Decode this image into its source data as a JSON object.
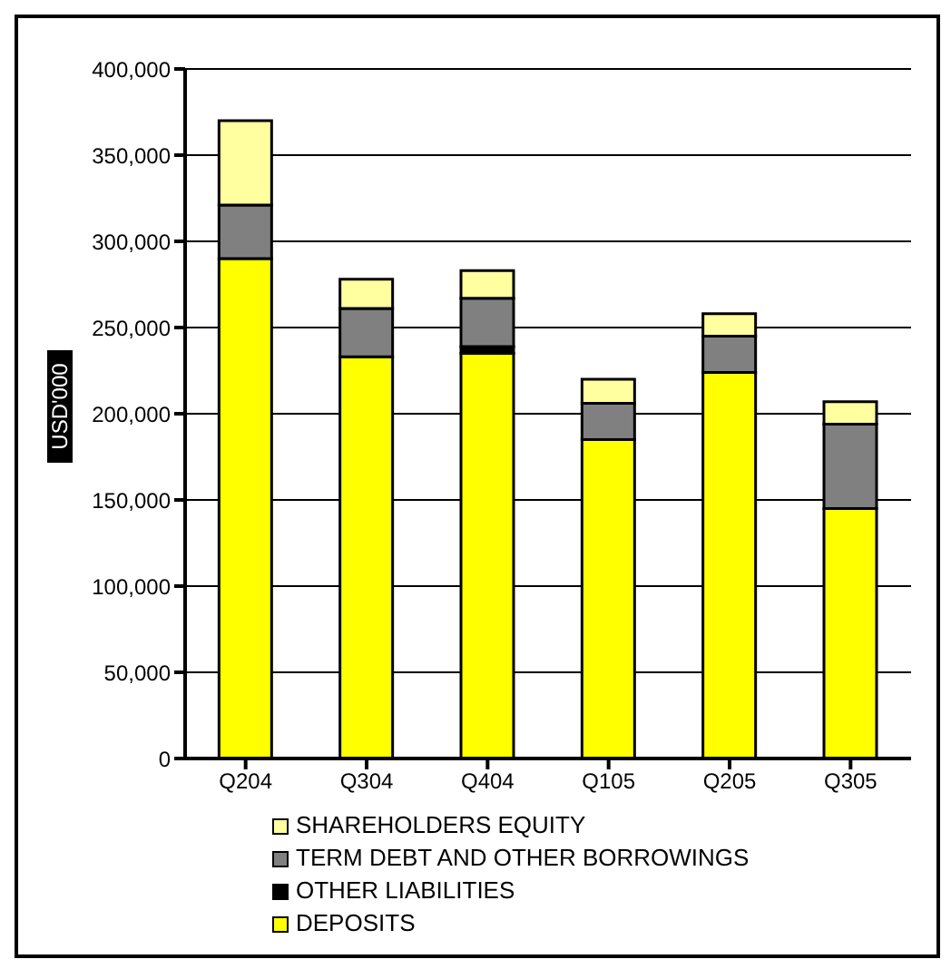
{
  "chart_data": {
    "type": "bar",
    "stacked": true,
    "ylabel": "USD'000",
    "categories": [
      "Q204",
      "Q304",
      "Q404",
      "Q105",
      "Q205",
      "Q305"
    ],
    "series": [
      {
        "name": "DEPOSITS",
        "color": "#ffff00",
        "values": [
          290000,
          233000,
          235000,
          185000,
          224000,
          145000
        ]
      },
      {
        "name": "OTHER LIABILITIES",
        "color": "#000000",
        "values": [
          null,
          null,
          4000,
          null,
          null,
          null
        ]
      },
      {
        "name": "TERM DEBT AND OTHER BORROWINGS",
        "color": "#808080",
        "values": [
          31000,
          28000,
          28000,
          21000,
          21000,
          49000
        ]
      },
      {
        "name": "SHAREHOLDERS EQUITY",
        "color": "#ffffa0",
        "values": [
          49000,
          17000,
          16000,
          14000,
          13000,
          13000
        ]
      }
    ],
    "ylim": [
      0,
      400000
    ],
    "yticks": [
      0,
      {
        "value": 50000,
        "label": "50,000"
      },
      {
        "value": 100000,
        "label": "100,000"
      },
      {
        "value": 150000,
        "label": "150,000"
      },
      {
        "value": 200000,
        "label": "200,000"
      },
      {
        "value": 250000,
        "label": "250,000"
      },
      {
        "value": 300000,
        "label": "300,000"
      },
      {
        "value": 350000,
        "label": "350,000"
      },
      {
        "value": 400000,
        "label": "400,000"
      }
    ],
    "grid": "y",
    "legend": "bottom"
  }
}
